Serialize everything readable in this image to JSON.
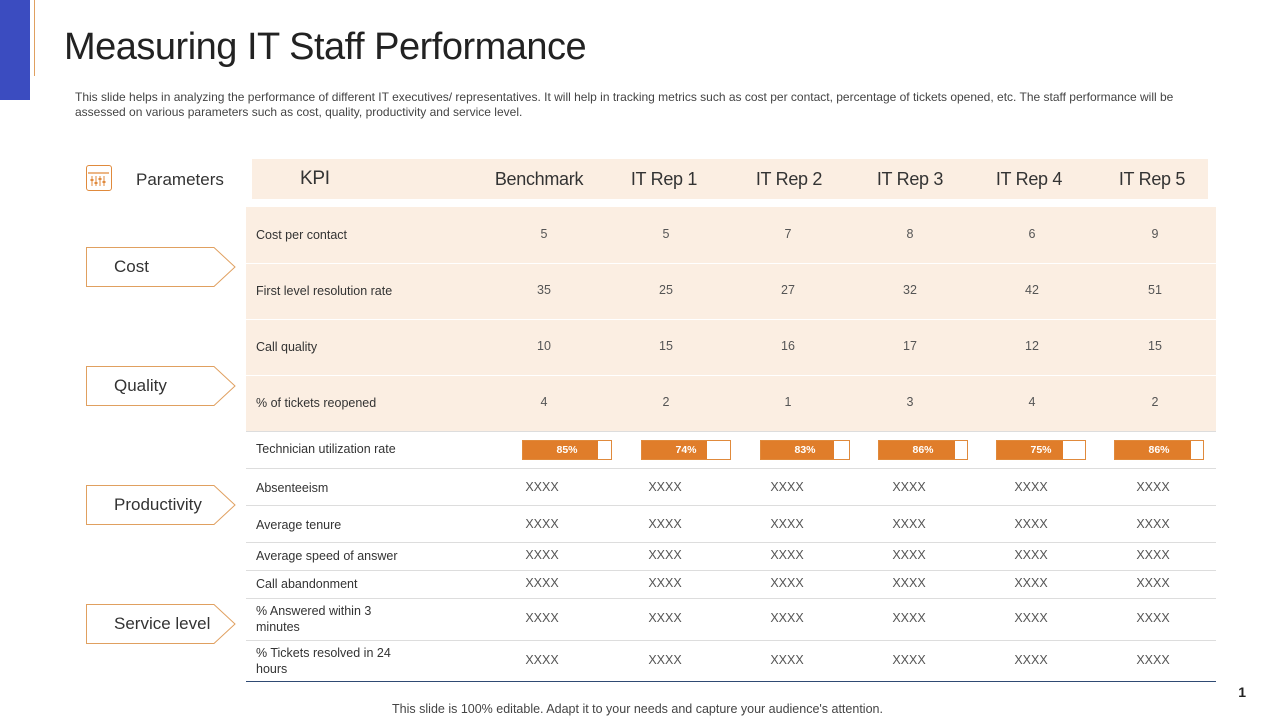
{
  "title": "Measuring IT Staff Performance",
  "subtitle": "This slide helps in analyzing the performance of different IT executives/ representatives. It will help in tracking metrics such as cost per contact, percentage of tickets opened, etc. The staff performance will be assessed on various parameters such as cost, quality, productivity and service level.",
  "parameters_label": "Parameters",
  "parameters_icon": "sliders-icon",
  "accent_color": "#e07d2a",
  "header": [
    "KPI",
    "Benchmark",
    "IT Rep 1",
    "IT Rep 2",
    "IT Rep 3",
    "IT Rep 4",
    "IT Rep 5"
  ],
  "parameters": [
    "Cost",
    "Quality",
    "Productivity",
    "Service level"
  ],
  "rows": {
    "cost_per_contact": {
      "label": "Cost per contact",
      "values": [
        "5",
        "5",
        "7",
        "8",
        "6",
        "9"
      ]
    },
    "first_level_resolution": {
      "label": "First level resolution rate",
      "values": [
        "35",
        "25",
        "27",
        "32",
        "42",
        "51"
      ]
    },
    "call_quality": {
      "label": "Call quality",
      "values": [
        "10",
        "15",
        "16",
        "17",
        "12",
        "15"
      ]
    },
    "tickets_reopened": {
      "label": "% of tickets reopened",
      "values": [
        "4",
        "2",
        "1",
        "3",
        "4",
        "2"
      ]
    },
    "tech_utilization": {
      "label": "Technician utilization rate",
      "values": [
        "85%",
        "74%",
        "83%",
        "86%",
        "75%",
        "86%"
      ],
      "fractions": [
        0.85,
        0.74,
        0.83,
        0.86,
        0.75,
        0.86
      ]
    },
    "absenteeism": {
      "label": "Absenteeism",
      "values": [
        "XXXX",
        "XXXX",
        "XXXX",
        "XXXX",
        "XXXX",
        "XXXX"
      ]
    },
    "average_tenure": {
      "label": "Average tenure",
      "values": [
        "XXXX",
        "XXXX",
        "XXXX",
        "XXXX",
        "XXXX",
        "XXXX"
      ]
    },
    "avg_speed_answer": {
      "label": "Average speed of answer",
      "values": [
        "XXXX",
        "XXXX",
        "XXXX",
        "XXXX",
        "XXXX",
        "XXXX"
      ]
    },
    "call_abandonment": {
      "label": "Call abandonment",
      "values": [
        "XXXX",
        "XXXX",
        "XXXX",
        "XXXX",
        "XXXX",
        "XXXX"
      ]
    },
    "answered_3min": {
      "label": "% Answered within 3 minutes",
      "values": [
        "XXXX",
        "XXXX",
        "XXXX",
        "XXXX",
        "XXXX",
        "XXXX"
      ]
    },
    "resolved_24h": {
      "label": "% Tickets resolved in 24 hours",
      "values": [
        "XXXX",
        "XXXX",
        "XXXX",
        "XXXX",
        "XXXX",
        "XXXX"
      ]
    }
  },
  "footer": "This slide is 100% editable. Adapt it to your needs and capture your audience's attention.",
  "page_number": "1"
}
